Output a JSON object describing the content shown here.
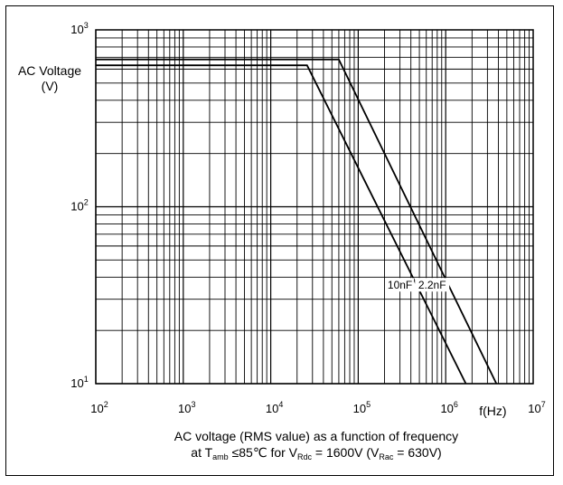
{
  "chart_data": {
    "type": "line",
    "x_scale": "log",
    "y_scale": "log",
    "xlim": [
      100,
      10000000
    ],
    "ylim": [
      10,
      1000
    ],
    "grid": true,
    "ylabel": "AC Voltage\n(V)",
    "xlabel": "f(Hz)",
    "x_ticks": [
      {
        "base": "10",
        "exp": "2"
      },
      {
        "base": "10",
        "exp": "3"
      },
      {
        "base": "10",
        "exp": "4"
      },
      {
        "base": "10",
        "exp": "5"
      },
      {
        "base": "10",
        "exp": "6"
      },
      {
        "base": "10",
        "exp": "7"
      }
    ],
    "y_ticks": [
      {
        "base": "10",
        "exp": "1"
      },
      {
        "base": "10",
        "exp": "2"
      },
      {
        "base": "10",
        "exp": "3"
      }
    ],
    "series": [
      {
        "name": "10nF",
        "x": [
          100,
          26000,
          1700000
        ],
        "y": [
          630,
          630,
          10
        ],
        "label_at": [
          300000,
          36
        ]
      },
      {
        "name": "2.2nF",
        "x": [
          100,
          60000,
          3800000
        ],
        "y": [
          680,
          680,
          10
        ],
        "label_at": [
          700000,
          36
        ]
      }
    ],
    "caption": {
      "line1": "AC voltage (RMS value) as a function of frequency",
      "line2": {
        "at": "at T",
        "amb": "amb",
        "cond": " ≤85℃  for V",
        "rdc": "Rdc",
        "eq": " = 1600V (V",
        "rac": "Rac",
        "tail": " = 630V)"
      }
    }
  }
}
